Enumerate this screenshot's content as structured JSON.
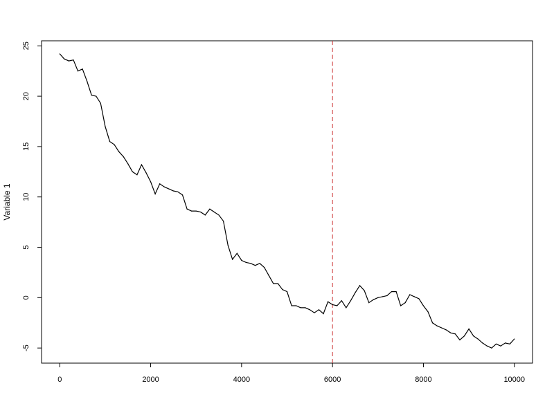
{
  "chart_data": {
    "type": "line",
    "title": "",
    "xlabel": "",
    "ylabel": "Variable 1",
    "xlim": [
      -400,
      10400
    ],
    "ylim": [
      -6.5,
      25.5
    ],
    "x_ticks": [
      0,
      2000,
      4000,
      6000,
      8000,
      10000
    ],
    "x_tick_labels": [
      "0",
      "2000",
      "4000",
      "6000",
      "8000",
      "10000"
    ],
    "y_ticks": [
      -5,
      0,
      5,
      10,
      15,
      20,
      25
    ],
    "y_tick_labels": [
      "-5",
      "0",
      "5",
      "10",
      "15",
      "20",
      "25"
    ],
    "grid": false,
    "vline": {
      "x": 6000,
      "color": "#cc3333",
      "style": "dashed"
    },
    "series": [
      {
        "color": "#000000",
        "x": [
          0,
          100,
          200,
          300,
          400,
          500,
          600,
          700,
          800,
          900,
          1000,
          1100,
          1200,
          1300,
          1400,
          1500,
          1600,
          1700,
          1800,
          1900,
          2000,
          2100,
          2200,
          2300,
          2400,
          2500,
          2600,
          2700,
          2800,
          2900,
          3000,
          3100,
          3200,
          3300,
          3400,
          3500,
          3600,
          3700,
          3800,
          3900,
          4000,
          4100,
          4200,
          4300,
          4400,
          4500,
          4600,
          4700,
          4800,
          4900,
          5000,
          5100,
          5200,
          5300,
          5400,
          5500,
          5600,
          5700,
          5800,
          5900,
          6000,
          6100,
          6200,
          6300,
          6400,
          6500,
          6600,
          6700,
          6800,
          6900,
          7000,
          7100,
          7200,
          7300,
          7400,
          7500,
          7600,
          7700,
          7800,
          7900,
          8000,
          8100,
          8200,
          8300,
          8400,
          8500,
          8600,
          8700,
          8800,
          8900,
          9000,
          9100,
          9200,
          9300,
          9400,
          9500,
          9600,
          9700,
          9800,
          9900,
          10000
        ],
        "y": [
          24.2,
          23.7,
          23.5,
          23.6,
          22.5,
          22.7,
          21.5,
          20.1,
          20.0,
          19.3,
          17.0,
          15.5,
          15.2,
          14.5,
          14.0,
          13.3,
          12.5,
          12.2,
          13.2,
          12.4,
          11.5,
          10.3,
          11.3,
          11.0,
          10.8,
          10.6,
          10.5,
          10.2,
          8.8,
          8.6,
          8.6,
          8.5,
          8.2,
          8.8,
          8.5,
          8.2,
          7.6,
          5.2,
          3.8,
          4.4,
          3.7,
          3.5,
          3.4,
          3.2,
          3.4,
          3.0,
          2.2,
          1.4,
          1.4,
          0.8,
          0.6,
          -0.8,
          -0.8,
          -1.0,
          -1.0,
          -1.2,
          -1.5,
          -1.2,
          -1.6,
          -0.4,
          -0.7,
          -0.8,
          -0.3,
          -1.0,
          -0.3,
          0.5,
          1.2,
          0.7,
          -0.5,
          -0.2,
          0.0,
          0.1,
          0.2,
          0.6,
          0.6,
          -0.8,
          -0.5,
          0.3,
          0.1,
          -0.1,
          -0.8,
          -1.4,
          -2.5,
          -2.8,
          -3.0,
          -3.2,
          -3.5,
          -3.6,
          -4.2,
          -3.8,
          -3.1,
          -3.8,
          -4.1,
          -4.5,
          -4.8,
          -5.0,
          -4.6,
          -4.8,
          -4.5,
          -4.6,
          -4.1
        ]
      }
    ]
  }
}
